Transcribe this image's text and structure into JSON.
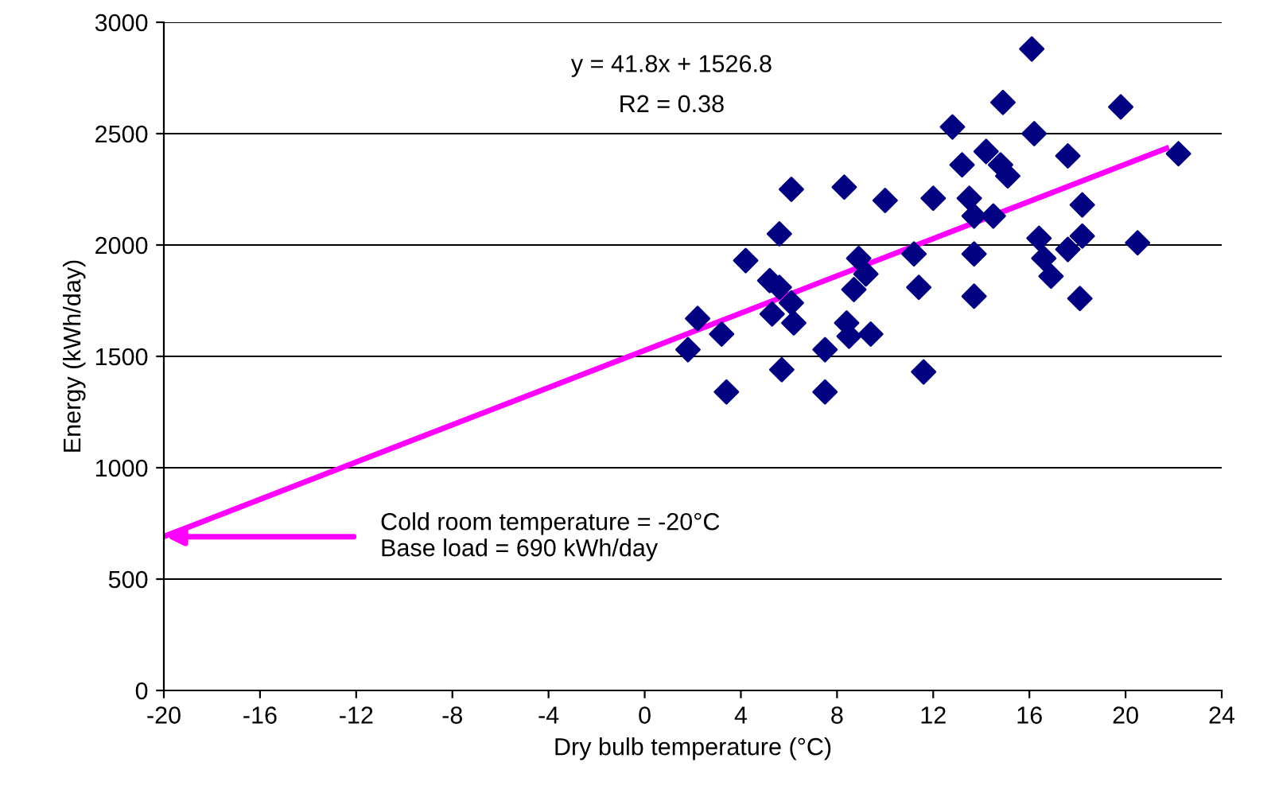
{
  "chart_data": {
    "type": "scatter",
    "xlabel": "Dry bulb temperature (°C)",
    "ylabel": "Energy (kWh/day)",
    "xlim": [
      -20,
      24
    ],
    "xticks": [
      -20,
      -16,
      -12,
      -8,
      -4,
      0,
      4,
      8,
      12,
      16,
      20,
      24
    ],
    "ylim": [
      0,
      3000
    ],
    "yticks": [
      0,
      500,
      1000,
      1500,
      2000,
      2500,
      3000
    ],
    "grid": "y",
    "marker": "diamond",
    "series": [
      {
        "color": "#000080",
        "x": [
          1.8,
          2.2,
          3.2,
          3.4,
          4.2,
          5.2,
          5.3,
          5.6,
          5.6,
          5.7,
          6.1,
          6.1,
          6.2,
          7.5,
          7.5,
          8.3,
          8.4,
          8.5,
          8.7,
          8.9,
          9.2,
          9.4,
          10.0,
          11.2,
          11.4,
          11.6,
          12.0,
          12.8,
          13.2,
          13.5,
          13.7,
          13.7,
          13.7,
          14.2,
          14.8,
          15.1,
          14.5,
          14.9,
          16.1,
          16.2,
          16.4,
          16.6,
          16.9,
          17.6,
          17.6,
          18.2,
          18.2,
          18.1,
          19.8,
          20.5,
          22.2
        ],
        "values": [
          1530,
          1670,
          1600,
          1340,
          1930,
          1840,
          1690,
          2050,
          1810,
          1440,
          2250,
          1740,
          1650,
          1340,
          1530,
          2260,
          1650,
          1590,
          1800,
          1940,
          1870,
          1600,
          2200,
          1960,
          1810,
          1430,
          2210,
          2530,
          2360,
          2210,
          2130,
          1960,
          1770,
          2420,
          2360,
          2310,
          2130,
          2640,
          2880,
          2500,
          2030,
          1940,
          1860,
          2400,
          1980,
          2040,
          2180,
          1760,
          2620,
          2010,
          2410
        ]
      },
      {
        "type": "line",
        "color": "#ff00ff",
        "marker": "none",
        "x": [
          -20,
          21.7
        ],
        "values": [
          691,
          2434
        ]
      }
    ],
    "annotations": [
      "y = 41.8x + 1526.8",
      "R2 = 0.38",
      {
        "text": "Cold room temperature = -20°C\nBase load = 690 kWh/day",
        "x": -20,
        "y": 690
      }
    ]
  }
}
